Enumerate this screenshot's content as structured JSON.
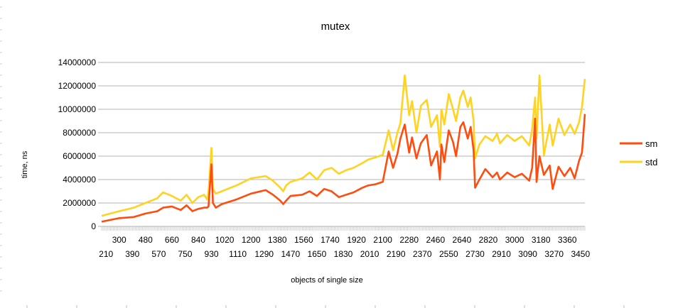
{
  "chart_data": {
    "type": "line",
    "title": "mutex",
    "xlabel": "objects of single size",
    "ylabel": "time, ns",
    "ylim": [
      0,
      14000000
    ],
    "yticks": [
      0,
      2000000,
      4000000,
      6000000,
      8000000,
      10000000,
      12000000,
      14000000
    ],
    "ytick_labels": [
      "0",
      "2000000",
      "4000000",
      "6000000",
      "8000000",
      "10000000",
      "12000000",
      "14000000"
    ],
    "x_range": [
      180,
      3480
    ],
    "x_step": 10,
    "x_tick_labels_row1": [
      "300",
      "480",
      "660",
      "840",
      "1020",
      "1200",
      "1380",
      "1560",
      "1740",
      "1920",
      "2100",
      "2280",
      "2460",
      "2640",
      "2820",
      "3000",
      "3180",
      "3360"
    ],
    "x_tick_labels_row2": [
      "210",
      "390",
      "570",
      "750",
      "930",
      "1110",
      "1290",
      "1470",
      "1650",
      "1830",
      "2010",
      "2190",
      "2370",
      "2550",
      "2730",
      "2910",
      "3090",
      "3270",
      "3450"
    ],
    "grid": "horizontal",
    "legend_position": "right",
    "colors": {
      "sm": "#ff4c0f",
      "std": "#ffd320"
    },
    "series": [
      {
        "name": "sm",
        "color": "#ff4c0f",
        "x": [
          180,
          300,
          400,
          480,
          560,
          600,
          660,
          720,
          760,
          800,
          840,
          880,
          900,
          910,
          930,
          940,
          960,
          1000,
          1100,
          1200,
          1300,
          1350,
          1400,
          1420,
          1440,
          1470,
          1550,
          1600,
          1650,
          1700,
          1750,
          1800,
          1850,
          1900,
          1960,
          2000,
          2050,
          2100,
          2140,
          2170,
          2200,
          2220,
          2250,
          2280,
          2300,
          2330,
          2360,
          2400,
          2430,
          2470,
          2490,
          2500,
          2520,
          2550,
          2580,
          2600,
          2630,
          2650,
          2680,
          2700,
          2720,
          2730,
          2760,
          2800,
          2850,
          2880,
          2900,
          2950,
          3000,
          3050,
          3100,
          3120,
          3140,
          3150,
          3170,
          3200,
          3240,
          3260,
          3300,
          3340,
          3380,
          3410,
          3440,
          3460,
          3480
        ],
        "y": [
          400000,
          700000,
          800000,
          1100000,
          1300000,
          1600000,
          1700000,
          1400000,
          1800000,
          1300000,
          1500000,
          1600000,
          1600000,
          1700000,
          5300000,
          2000000,
          1600000,
          1900000,
          2300000,
          2800000,
          3100000,
          2700000,
          2200000,
          1900000,
          2200000,
          2600000,
          2700000,
          3000000,
          2600000,
          3200000,
          3000000,
          2500000,
          2700000,
          2900000,
          3300000,
          3500000,
          3600000,
          3800000,
          6400000,
          5000000,
          6200000,
          7500000,
          8700000,
          6300000,
          7600000,
          5800000,
          7100000,
          7800000,
          5200000,
          6400000,
          4000000,
          7000000,
          5500000,
          8200000,
          7200000,
          6000000,
          8500000,
          8900000,
          7500000,
          8500000,
          6500000,
          3300000,
          4000000,
          4900000,
          4200000,
          4600000,
          4000000,
          4600000,
          4200000,
          4500000,
          3900000,
          5000000,
          9200000,
          3800000,
          6000000,
          4400000,
          5200000,
          3200000,
          5100000,
          4300000,
          5000000,
          4100000,
          5600000,
          6300000,
          9600000
        ]
      },
      {
        "name": "std",
        "color": "#ffd320",
        "x": [
          180,
          300,
          400,
          480,
          560,
          600,
          660,
          720,
          760,
          800,
          840,
          880,
          900,
          910,
          930,
          940,
          960,
          1000,
          1100,
          1200,
          1300,
          1350,
          1400,
          1420,
          1440,
          1470,
          1550,
          1600,
          1650,
          1700,
          1750,
          1800,
          1850,
          1900,
          1960,
          2000,
          2050,
          2100,
          2140,
          2170,
          2200,
          2220,
          2250,
          2280,
          2300,
          2330,
          2360,
          2400,
          2430,
          2470,
          2490,
          2500,
          2520,
          2550,
          2580,
          2600,
          2630,
          2650,
          2680,
          2700,
          2720,
          2730,
          2760,
          2800,
          2850,
          2880,
          2900,
          2950,
          3000,
          3050,
          3100,
          3120,
          3140,
          3150,
          3170,
          3200,
          3240,
          3260,
          3300,
          3340,
          3380,
          3410,
          3440,
          3460,
          3480
        ],
        "y": [
          900000,
          1300000,
          1600000,
          2000000,
          2400000,
          2900000,
          2600000,
          2200000,
          2700000,
          2000000,
          2500000,
          2700000,
          2300000,
          2900000,
          6700000,
          3200000,
          2800000,
          3000000,
          3500000,
          4100000,
          4300000,
          3900000,
          3300000,
          3000000,
          3500000,
          3800000,
          4100000,
          4600000,
          4000000,
          4800000,
          5000000,
          4500000,
          4800000,
          5000000,
          5400000,
          5700000,
          5900000,
          6100000,
          8200000,
          6500000,
          8000000,
          8800000,
          12900000,
          9500000,
          10700000,
          8000000,
          10300000,
          10800000,
          8500000,
          9500000,
          6800000,
          10000000,
          8700000,
          11300000,
          10000000,
          9000000,
          11000000,
          11600000,
          10200000,
          11000000,
          9000000,
          5800000,
          7000000,
          7700000,
          7300000,
          7900000,
          7100000,
          7800000,
          7300000,
          7700000,
          6900000,
          8300000,
          11000000,
          7500000,
          12900000,
          6100000,
          8700000,
          6900000,
          9200000,
          7800000,
          8700000,
          7900000,
          8900000,
          10200000,
          12600000
        ]
      }
    ]
  }
}
